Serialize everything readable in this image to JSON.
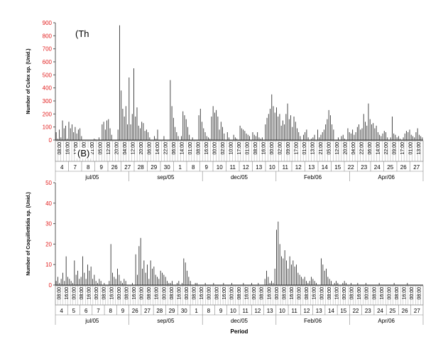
{
  "chart_data": [
    {
      "type": "bar",
      "panel_label": "(Th",
      "ylabel": "Number of Culex sp. (Unid.)",
      "xlabel": "",
      "ylim": [
        0,
        900
      ],
      "yticks": [
        0,
        100,
        200,
        300,
        400,
        500,
        600,
        700,
        800,
        900
      ],
      "ytick_color": "#e21c1c",
      "time_tick_labels": [
        "08:00",
        "16:00",
        "17:00",
        "13:00",
        "21:00",
        "05:00",
        "12:00",
        "20:00",
        "04:00",
        "12:00",
        "20:00",
        "06:00",
        "14:00",
        "22:00",
        "06:00",
        "14:00",
        "01:00",
        "08:00",
        "16:00",
        "00:00",
        "02:00",
        "10:00",
        "17:00",
        "01:00",
        "08:00",
        "16:00",
        "00:00",
        "02:00",
        "09:00",
        "17:00",
        "01:00",
        "13:00",
        "21:00",
        "05:00",
        "12:00",
        "20:00",
        "04:00",
        "22:00",
        "06:00",
        "14:00",
        "22:00",
        "09:00",
        "17:00",
        "01:00",
        "13:00"
      ],
      "day_labels": [
        "4",
        "7",
        "8",
        "9",
        "26",
        "27",
        "28",
        "29",
        "30",
        "1",
        "8",
        "9",
        "10",
        "11",
        "12",
        "13",
        "10",
        "11",
        "12",
        "13",
        "14",
        "15",
        "22",
        "23",
        "24",
        "25",
        "26",
        "27"
      ],
      "month_labels": [
        "jul/05",
        "sep/05",
        "dec/05",
        "Feb/06",
        "Apr/06"
      ],
      "notable_peaks": [
        880,
        550,
        480,
        460,
        350,
        280,
        260,
        250
      ],
      "values": [
        60,
        10,
        80,
        20,
        150,
        90,
        110,
        10,
        140,
        90,
        120,
        60,
        100,
        50,
        80,
        90,
        30,
        0,
        0,
        0,
        0,
        0,
        0,
        0,
        10,
        5,
        0,
        20,
        0,
        120,
        140,
        80,
        150,
        160,
        90,
        40,
        0,
        0,
        0,
        80,
        880,
        380,
        240,
        180,
        260,
        120,
        480,
        120,
        200,
        550,
        180,
        250,
        110,
        90,
        140,
        130,
        70,
        80,
        60,
        20,
        0,
        0,
        30,
        10,
        80,
        0,
        0,
        0,
        30,
        0,
        0,
        0,
        460,
        260,
        170,
        100,
        60,
        30,
        0,
        30,
        220,
        190,
        160,
        100,
        40,
        0,
        20,
        0,
        0,
        0,
        190,
        240,
        140,
        90,
        60,
        30,
        20,
        10,
        180,
        260,
        210,
        230,
        180,
        80,
        140,
        100,
        50,
        0,
        60,
        20,
        0,
        0,
        40,
        20,
        10,
        0,
        110,
        90,
        80,
        70,
        50,
        40,
        30,
        0,
        60,
        40,
        30,
        60,
        20,
        10,
        20,
        0,
        120,
        170,
        200,
        240,
        350,
        260,
        210,
        250,
        180,
        200,
        110,
        150,
        120,
        200,
        280,
        160,
        190,
        100,
        180,
        140,
        90,
        60,
        30,
        0,
        40,
        60,
        80,
        20,
        0,
        10,
        20,
        40,
        0,
        80,
        20,
        40,
        60,
        80,
        120,
        160,
        230,
        190,
        120,
        80,
        0,
        0,
        20,
        0,
        30,
        40,
        10,
        0,
        90,
        60,
        50,
        80,
        40,
        60,
        100,
        120,
        80,
        90,
        200,
        140,
        110,
        280,
        160,
        120,
        130,
        90,
        110,
        60,
        40,
        30,
        50,
        70,
        60,
        20,
        0,
        20,
        180,
        50,
        40,
        20,
        30,
        10,
        0,
        20,
        50,
        70,
        60,
        80,
        40,
        30,
        20,
        60,
        90,
        40,
        30,
        20
      ],
      "series_name": "Culex sp. (Unid.)"
    },
    {
      "type": "bar",
      "panel_label": "(B)",
      "ylabel": "Number of Coquillettidia sp. (Unid.)",
      "xlabel": "Period",
      "ylim": [
        0,
        50
      ],
      "yticks": [
        0,
        10,
        20,
        30,
        40,
        50
      ],
      "ytick_color": "#e21c1c",
      "time_tick_labels": [
        "08:00",
        "16:00",
        "00:00",
        "08:00",
        "16:00",
        "00:00",
        "08:00",
        "16:00",
        "00:00",
        "08:00",
        "16:00",
        "00:00",
        "08:00",
        "16:00",
        "00:00",
        "08:00",
        "16:00",
        "00:00",
        "08:00",
        "16:00",
        "00:00",
        "08:00",
        "16:00",
        "00:00",
        "08:00",
        "16:00",
        "00:00",
        "08:00",
        "16:00",
        "00:00",
        "08:00",
        "16:00",
        "00:00",
        "08:00",
        "16:00",
        "00:00",
        "08:00",
        "16:00",
        "00:00",
        "08:00",
        "16:00",
        "00:00",
        "08:00",
        "16:00",
        "00:00",
        "08:00",
        "16:00",
        "00:00",
        "08:00"
      ],
      "day_labels": [
        "4",
        "5",
        "6",
        "7",
        "8",
        "9",
        "26",
        "27",
        "28",
        "29",
        "30",
        "1",
        "8",
        "9",
        "10",
        "11",
        "12",
        "13",
        "10",
        "11",
        "12",
        "13",
        "14",
        "15",
        "22",
        "23",
        "24",
        "25",
        "26",
        "27"
      ],
      "month_labels": [
        "jul/05",
        "sep/05",
        "dec/05",
        "Feb/06",
        "Apr/06"
      ],
      "notable_peaks": [
        31,
        27,
        23,
        20,
        19,
        15,
        14,
        13
      ],
      "values": [
        2,
        4,
        1,
        3,
        6,
        2,
        14,
        4,
        3,
        2,
        1,
        12,
        5,
        7,
        3,
        4,
        14,
        6,
        3,
        10,
        7,
        9,
        3,
        5,
        2,
        1,
        3,
        2,
        0,
        1,
        0,
        0,
        2,
        20,
        6,
        4,
        3,
        8,
        5,
        2,
        1,
        3,
        2,
        0,
        0,
        0,
        1,
        0,
        15,
        5,
        19,
        23,
        8,
        12,
        6,
        10,
        3,
        12,
        8,
        9,
        5,
        4,
        3,
        7,
        6,
        5,
        4,
        2,
        1,
        1,
        2,
        0,
        0,
        1,
        2,
        0,
        1,
        13,
        11,
        7,
        4,
        2,
        0,
        0,
        1,
        1,
        0,
        0,
        0,
        0,
        1,
        0,
        0,
        0,
        0,
        1,
        0,
        0,
        0,
        0,
        0,
        1,
        0,
        0,
        0,
        0,
        1,
        0,
        0,
        0,
        0,
        0,
        0,
        1,
        0,
        0,
        0,
        0,
        1,
        0,
        0,
        0,
        1,
        0,
        0,
        0,
        3,
        7,
        4,
        1,
        2,
        1,
        8,
        27,
        31,
        20,
        14,
        13,
        17,
        12,
        8,
        14,
        10,
        12,
        9,
        10,
        6,
        5,
        4,
        3,
        4,
        2,
        1,
        2,
        4,
        3,
        2,
        1,
        0,
        0,
        13,
        10,
        7,
        8,
        4,
        3,
        2,
        0,
        1,
        2,
        1,
        0,
        0,
        1,
        2,
        1,
        0,
        0,
        1,
        0,
        0,
        0,
        1,
        0,
        0,
        0,
        0,
        1,
        0,
        0,
        0,
        0,
        0,
        0,
        0,
        1,
        0,
        0,
        0,
        0,
        0,
        0,
        0,
        0,
        1,
        0,
        0,
        0,
        0,
        0,
        0,
        0,
        1,
        0,
        0,
        0,
        0,
        0,
        0,
        0,
        0,
        0
      ],
      "series_name": "Coquillettidia sp. (Unid.)"
    }
  ]
}
